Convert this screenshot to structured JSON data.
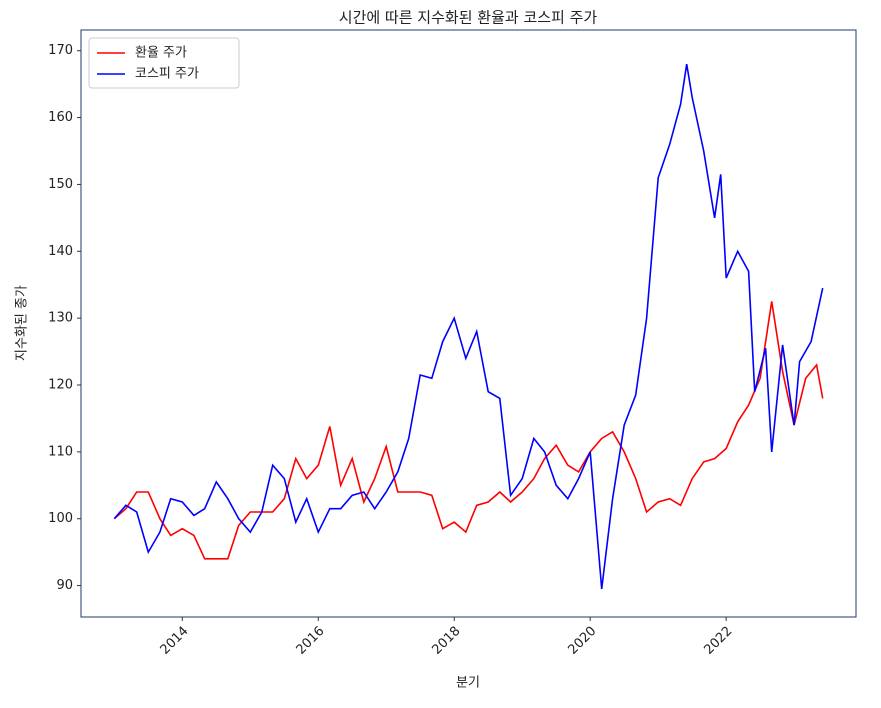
{
  "chart_data": {
    "type": "line",
    "title": "시간에 따른 지수화된 환율과 코스피 주가",
    "xlabel": "분기",
    "ylabel": "지수화된 종가",
    "xlim": [
      2012.51,
      2023.91
    ],
    "xticks": [
      2014,
      2016,
      2018,
      2020,
      2022
    ],
    "ylim": [
      85.3,
      173.1
    ],
    "yticks": [
      90,
      100,
      110,
      120,
      130,
      140,
      150,
      160,
      170
    ],
    "legend": "upper left",
    "series": [
      {
        "name": "환율 주가",
        "color": "#ff0000",
        "x": [
          2013.0,
          2013.17,
          2013.33,
          2013.5,
          2013.67,
          2013.83,
          2014.0,
          2014.17,
          2014.33,
          2014.5,
          2014.67,
          2014.83,
          2015.0,
          2015.17,
          2015.33,
          2015.5,
          2015.67,
          2015.83,
          2016.0,
          2016.17,
          2016.33,
          2016.5,
          2016.67,
          2016.83,
          2017.0,
          2017.17,
          2017.33,
          2017.5,
          2017.67,
          2017.83,
          2018.0,
          2018.17,
          2018.33,
          2018.5,
          2018.67,
          2018.83,
          2019.0,
          2019.17,
          2019.33,
          2019.5,
          2019.67,
          2019.83,
          2020.0,
          2020.17,
          2020.33,
          2020.5,
          2020.67,
          2020.83,
          2021.0,
          2021.17,
          2021.33,
          2021.5,
          2021.67,
          2021.83,
          2022.0,
          2022.17,
          2022.33,
          2022.5,
          2022.67,
          2022.83,
          2023.0,
          2023.17,
          2023.33,
          2023.42
        ],
        "values": [
          100,
          101.5,
          104,
          104,
          100,
          97.5,
          98.5,
          97.5,
          94,
          94,
          94,
          99,
          101,
          101,
          101,
          103,
          109,
          106,
          108,
          113.8,
          105,
          109,
          102.5,
          106,
          110.8,
          104,
          104,
          104,
          103.5,
          98.5,
          99.5,
          98,
          102,
          102.5,
          104,
          102.5,
          104,
          106,
          109,
          111,
          108,
          107,
          110,
          112,
          113,
          110,
          106,
          101,
          102.5,
          103,
          102,
          106,
          108.5,
          109,
          110.5,
          114.5,
          117,
          121,
          132.5,
          122,
          114,
          121,
          123,
          118
        ]
      },
      {
        "name": "코스피 주가",
        "color": "#0000ff",
        "x": [
          2013.0,
          2013.17,
          2013.33,
          2013.5,
          2013.67,
          2013.83,
          2014.0,
          2014.17,
          2014.33,
          2014.5,
          2014.67,
          2014.83,
          2015.0,
          2015.17,
          2015.33,
          2015.5,
          2015.67,
          2015.83,
          2016.0,
          2016.17,
          2016.33,
          2016.5,
          2016.67,
          2016.83,
          2017.0,
          2017.17,
          2017.33,
          2017.5,
          2017.67,
          2017.83,
          2018.0,
          2018.17,
          2018.33,
          2018.5,
          2018.67,
          2018.83,
          2019.0,
          2019.17,
          2019.33,
          2019.5,
          2019.67,
          2019.83,
          2020.0,
          2020.17,
          2020.33,
          2020.5,
          2020.67,
          2020.83,
          2021.0,
          2021.17,
          2021.33,
          2021.42,
          2021.5,
          2021.67,
          2021.83,
          2021.92,
          2022.0,
          2022.17,
          2022.33,
          2022.42,
          2022.58,
          2022.67,
          2022.83,
          2023.0,
          2023.08,
          2023.25,
          2023.42
        ],
        "values": [
          100,
          102,
          101,
          95,
          98,
          103,
          102.5,
          100.5,
          101.5,
          105.5,
          103,
          100,
          98,
          101,
          108,
          106,
          99.5,
          103,
          98,
          101.5,
          101.5,
          103.5,
          104,
          101.5,
          104,
          107,
          112,
          121.5,
          121,
          126.5,
          130,
          124,
          128,
          119,
          118,
          103.5,
          106,
          112,
          110,
          105,
          103,
          106,
          110,
          89.5,
          103,
          114,
          118.5,
          130,
          151,
          156,
          162,
          168,
          163,
          155,
          145,
          151.5,
          136,
          140,
          137,
          119,
          125.5,
          110,
          126,
          114,
          123.5,
          126.5,
          134.5
        ]
      }
    ]
  }
}
